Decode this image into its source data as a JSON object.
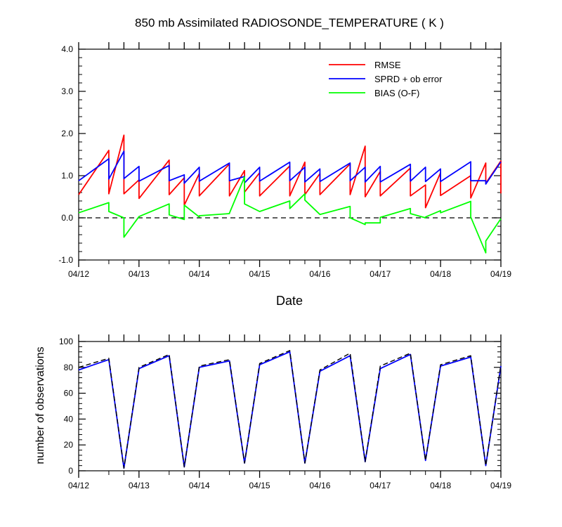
{
  "chart_data": [
    {
      "type": "line",
      "title": "850 mb Assimilated RADIOSONDE_TEMPERATURE ( K )",
      "xlabel": "Date",
      "ylabel": "",
      "xlim": [
        0,
        7
      ],
      "ylim": [
        -1.0,
        4.0
      ],
      "yticks": [
        "-1.0",
        "0.0",
        "1.0",
        "2.0",
        "3.0",
        "4.0"
      ],
      "ytick_values": [
        -1,
        0,
        1,
        2,
        3,
        4
      ],
      "xticks": [
        "04/12",
        "04/13",
        "04/14",
        "04/15",
        "04/16",
        "04/17",
        "04/18",
        "04/19"
      ],
      "reference_line": 0,
      "legend_position": "top-right",
      "series": [
        {
          "name": "RMSE",
          "color": "#ff0000",
          "x": [
            0.0,
            0.5,
            0.5,
            0.75,
            0.75,
            1.0,
            1.0,
            1.5,
            1.5,
            1.75,
            1.75,
            2.0,
            2.0,
            2.5,
            2.5,
            2.75,
            2.75,
            3.0,
            3.0,
            3.5,
            3.5,
            3.75,
            3.75,
            4.0,
            4.0,
            4.5,
            4.5,
            4.75,
            4.75,
            5.0,
            5.0,
            5.5,
            5.5,
            5.75,
            5.75,
            6.0,
            6.0,
            6.5,
            6.5,
            6.75,
            6.75,
            7.0,
            7.0
          ],
          "y": [
            0.55,
            1.6,
            0.57,
            1.96,
            0.57,
            0.9,
            0.46,
            1.37,
            0.55,
            0.95,
            0.3,
            1.05,
            0.52,
            1.28,
            0.52,
            1.12,
            0.61,
            1.07,
            0.52,
            1.23,
            0.52,
            1.32,
            0.55,
            1.05,
            0.55,
            1.28,
            0.55,
            1.7,
            0.5,
            1.1,
            0.52,
            1.18,
            0.52,
            0.78,
            0.24,
            1.07,
            0.53,
            1.0,
            0.47,
            1.3,
            0.82,
            1.35,
            0.58
          ]
        },
        {
          "name": "SPRD + ob error",
          "color": "#0000ff",
          "x": [
            0.0,
            0.5,
            0.5,
            0.75,
            0.75,
            1.0,
            1.0,
            1.5,
            1.5,
            1.75,
            1.75,
            2.0,
            2.0,
            2.5,
            2.5,
            2.75,
            2.75,
            3.0,
            3.0,
            3.5,
            3.5,
            3.75,
            3.75,
            4.0,
            4.0,
            4.5,
            4.5,
            4.75,
            4.75,
            5.0,
            5.0,
            5.5,
            5.5,
            5.75,
            5.75,
            6.0,
            6.0,
            6.5,
            6.5,
            6.75,
            6.75,
            7.0
          ],
          "y": [
            0.88,
            1.4,
            0.92,
            1.58,
            0.93,
            1.22,
            0.87,
            1.24,
            0.88,
            1.02,
            0.82,
            1.2,
            0.87,
            1.3,
            0.88,
            0.98,
            0.83,
            1.2,
            0.87,
            1.32,
            0.88,
            1.2,
            0.85,
            1.16,
            0.86,
            1.3,
            0.88,
            1.2,
            0.85,
            1.22,
            0.85,
            1.27,
            0.87,
            1.2,
            0.86,
            1.16,
            0.86,
            1.33,
            0.88,
            0.88,
            0.8,
            1.33
          ]
        },
        {
          "name": "BIAS (O-F)",
          "color": "#00ff00",
          "x": [
            0.0,
            0.5,
            0.5,
            0.75,
            0.75,
            1.0,
            1.0,
            1.5,
            1.5,
            1.75,
            1.75,
            2.0,
            2.0,
            2.5,
            2.5,
            2.75,
            2.75,
            3.0,
            3.0,
            3.5,
            3.5,
            3.75,
            3.75,
            4.0,
            4.0,
            4.5,
            4.5,
            4.75,
            4.75,
            5.0,
            5.0,
            5.5,
            5.5,
            5.75,
            5.75,
            6.0,
            6.0,
            6.5,
            6.5,
            6.75,
            6.75,
            7.0
          ],
          "y": [
            0.12,
            0.36,
            0.15,
            0.0,
            -0.46,
            0.03,
            0.03,
            0.33,
            0.07,
            -0.04,
            0.3,
            0.02,
            0.05,
            0.1,
            0.11,
            0.97,
            0.33,
            0.15,
            0.15,
            0.4,
            0.22,
            0.57,
            0.42,
            0.08,
            0.08,
            0.27,
            0.0,
            -0.16,
            -0.12,
            -0.12,
            0.01,
            0.22,
            0.1,
            0.0,
            0.02,
            0.17,
            0.12,
            0.39,
            0.02,
            -0.83,
            -0.55,
            -0.02
          ]
        }
      ]
    },
    {
      "type": "line",
      "title": "",
      "xlabel": "",
      "ylabel": "number of observations",
      "xlim": [
        0,
        7
      ],
      "ylim": [
        0,
        100
      ],
      "yticks": [
        "0",
        "20",
        "40",
        "60",
        "80",
        "100"
      ],
      "ytick_values": [
        0,
        20,
        40,
        60,
        80,
        100
      ],
      "xticks": [
        "04/12",
        "04/13",
        "04/14",
        "04/15",
        "04/16",
        "04/17",
        "04/18",
        "04/19"
      ],
      "legend_position": "none",
      "series": [
        {
          "name": "",
          "style": "solid",
          "color": "#0000ff",
          "x": [
            0.0,
            0.5,
            0.75,
            1.0,
            1.5,
            1.75,
            2.0,
            2.5,
            2.75,
            3.0,
            3.5,
            3.75,
            4.0,
            4.5,
            4.75,
            5.0,
            5.5,
            5.75,
            6.0,
            6.5,
            6.75,
            7.0
          ],
          "y": [
            78,
            86,
            2,
            79,
            89,
            3,
            80,
            85,
            6,
            82,
            92,
            6,
            77,
            89,
            7,
            79,
            90,
            8,
            81,
            88,
            4,
            81
          ]
        },
        {
          "name": "",
          "style": "dashed",
          "color": "#000000",
          "x": [
            0.0,
            0.5,
            0.75,
            1.0,
            1.5,
            1.75,
            2.0,
            2.5,
            2.75,
            3.0,
            3.5,
            3.75,
            4.0,
            4.5,
            4.75,
            5.0,
            5.5,
            5.75,
            6.0,
            6.5,
            6.75,
            7.0
          ],
          "y": [
            80,
            87,
            2,
            80,
            90,
            3,
            81,
            86,
            6,
            83,
            93,
            6,
            78,
            91,
            7,
            81,
            91,
            8,
            82,
            89,
            4,
            82
          ]
        }
      ]
    }
  ]
}
